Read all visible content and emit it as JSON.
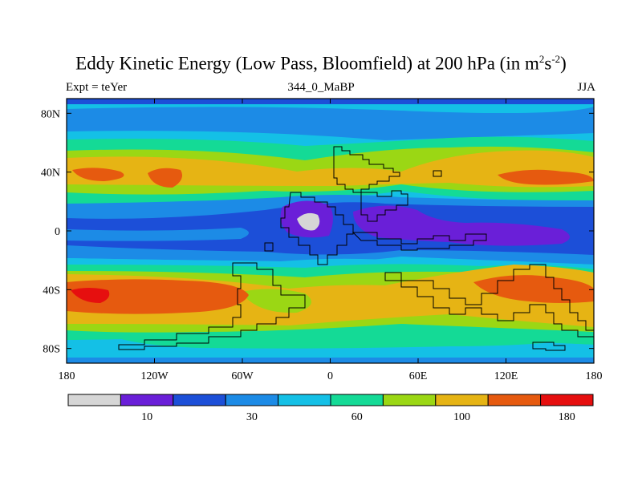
{
  "title": {
    "main": "Eddy Kinetic Energy (Low Pass, Bloomfield) at 200 hPa (in m",
    "sup1": "2",
    "s": "s",
    "sup2": "-2",
    "close": ")"
  },
  "subtitle": "344_0_MaBP",
  "left_label": "Expt = teYer",
  "right_label": "JJA",
  "axes": {
    "y_ticks": [
      {
        "label": "80N",
        "lat": 80
      },
      {
        "label": "40N",
        "lat": 40
      },
      {
        "label": "0",
        "lat": 0
      },
      {
        "label": "40S",
        "lat": -40
      },
      {
        "label": "80S",
        "lat": -80
      }
    ],
    "x_ticks": [
      {
        "label": "180",
        "lon": -180
      },
      {
        "label": "120W",
        "lon": -120
      },
      {
        "label": "60W",
        "lon": -60
      },
      {
        "label": "0",
        "lon": 0
      },
      {
        "label": "60E",
        "lon": 60
      },
      {
        "label": "120E",
        "lon": 120
      },
      {
        "label": "180",
        "lon": 180
      }
    ],
    "lon_range": [
      -180,
      180
    ],
    "lat_range": [
      -90,
      90
    ]
  },
  "colorbar": {
    "colors": [
      "#d6d6d6",
      "#6a1fd8",
      "#1c4fd8",
      "#1c8be6",
      "#14c0e6",
      "#14da96",
      "#9bd714",
      "#e6b414",
      "#e65a0f",
      "#e60f0f"
    ],
    "labels": [
      {
        "text": "10",
        "boundary": 2
      },
      {
        "text": "30",
        "boundary": 4
      },
      {
        "text": "60",
        "boundary": 6
      },
      {
        "text": "100",
        "boundary": 8
      },
      {
        "text": "180",
        "boundary": 10
      }
    ]
  },
  "colors": {
    "background": "#ffffff",
    "text": "#000000"
  }
}
